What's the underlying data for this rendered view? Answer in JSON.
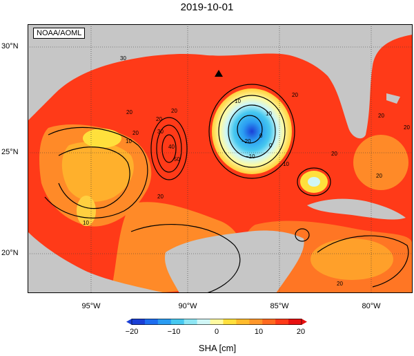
{
  "title": "2019-10-01",
  "credit": "NOAA/AOML",
  "lat_labels": [
    "30°N",
    "25°N",
    "20°N"
  ],
  "lon_labels": [
    "95°W",
    "90°W",
    "85°W",
    "80°W"
  ],
  "colorbar": {
    "ticks": [
      "−20",
      "−10",
      "0",
      "10",
      "20"
    ],
    "label": "SHA [cm]",
    "colors": [
      "#1a3fd6",
      "#1e6ef0",
      "#2a9cf2",
      "#46c8f0",
      "#8ee6f4",
      "#d0f6f6",
      "#fffaa0",
      "#ffe03c",
      "#ffbb2c",
      "#ff962a",
      "#ff6a20",
      "#ff3a18",
      "#e81010"
    ]
  },
  "contour_labels": [
    "30",
    "20",
    "20",
    "20",
    "30",
    "40",
    "50",
    "10",
    "10",
    "0",
    "−10",
    "−20",
    "0",
    "10",
    "20",
    "20",
    "20",
    "20",
    "20",
    "10",
    "10",
    "20",
    "20",
    "20"
  ],
  "land_color": "#c6c6c6",
  "marker": "triangle-marker"
}
